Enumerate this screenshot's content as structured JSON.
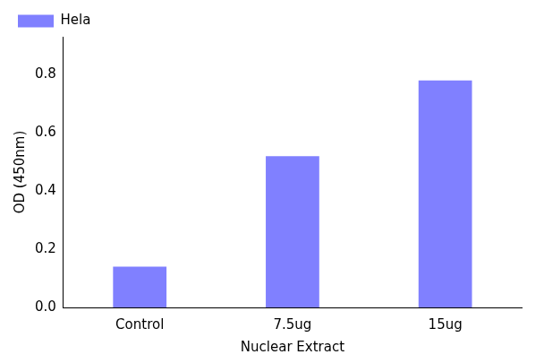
{
  "chart_data": {
    "type": "bar",
    "categories": [
      "Control",
      "7.5ug",
      "15ug"
    ],
    "series": [
      {
        "name": "Hela",
        "color": "#8080ff",
        "values": [
          0.14,
          0.52,
          0.78
        ]
      }
    ],
    "x_label": "Nuclear Extract",
    "y_label": "OD (450nm)",
    "ylim": [
      0,
      0.93
    ],
    "yticks": [
      {
        "value": 0,
        "label": "0.0"
      },
      0.2,
      0.4,
      0.6,
      0.8
    ],
    "grid": false,
    "legend": "upper left"
  }
}
